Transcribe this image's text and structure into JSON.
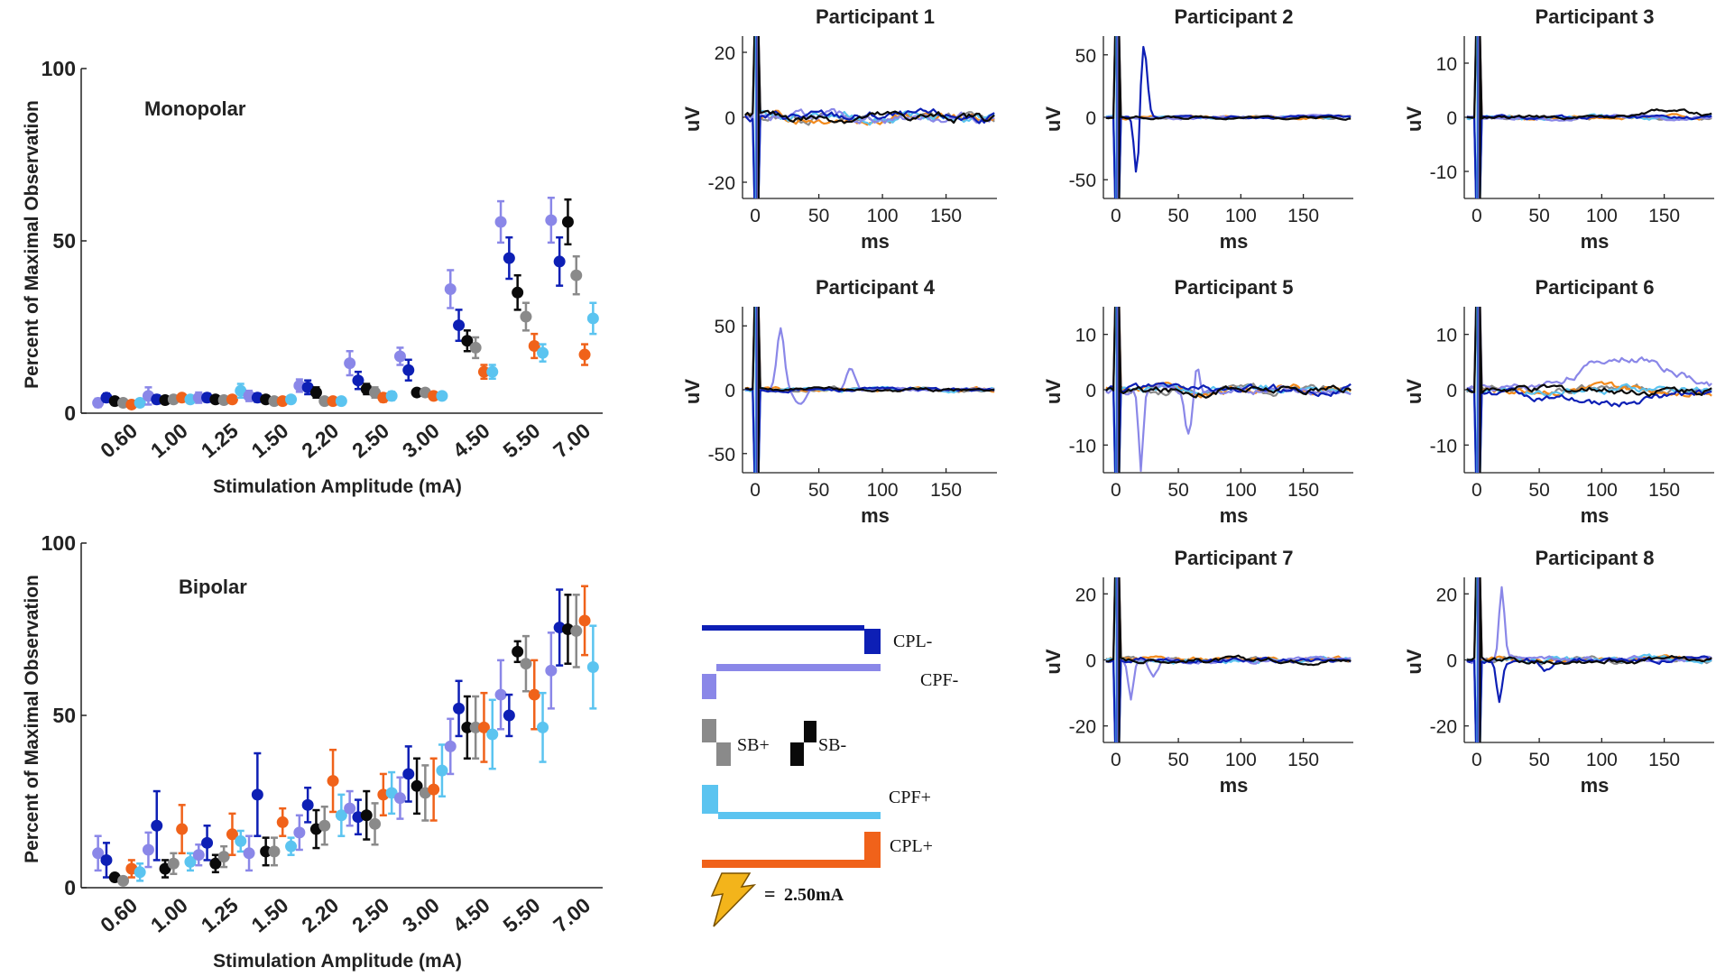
{
  "colors": {
    "CPL-": "#0d1fb5",
    "CPF-": "#8a87e8",
    "SB-": "#0a0a0a",
    "SB+": "#8a8a8a",
    "CPF+": "#5bc4f0",
    "CPL+": "#f0621a",
    "orange_trace": "#f28a1c",
    "bolt": "#f3b41b"
  },
  "chart_data": [
    {
      "id": "monopolar",
      "type": "scatter",
      "title": "Monopolar",
      "xlabel": "Stimulation Amplitude (mA)",
      "ylabel": "Percent of Maximal Observation",
      "ylim": [
        0,
        100
      ],
      "yticks": [
        "0",
        "50",
        "100"
      ],
      "categories": [
        "0.60",
        "1.00",
        "1.25",
        "1.50",
        "2.20",
        "2.50",
        "3.00",
        "4.50",
        "5.50",
        "7.00"
      ],
      "series": [
        {
          "name": "CPF-",
          "values": [
            3.0,
            5.0,
            4.5,
            5.0,
            8.0,
            14.5,
            16.5,
            36.0,
            55.5,
            56.0
          ],
          "err": [
            1.2,
            2.5,
            1.5,
            1.5,
            1.8,
            3.5,
            2.5,
            5.5,
            6.0,
            6.5
          ]
        },
        {
          "name": "CPL-",
          "values": [
            4.5,
            4.0,
            4.5,
            4.5,
            7.5,
            9.5,
            12.5,
            25.5,
            45.0,
            44.0
          ],
          "err": [
            1.2,
            1.2,
            1.2,
            1.2,
            2.0,
            2.5,
            3.0,
            4.5,
            6.0,
            7.0
          ]
        },
        {
          "name": "SB-",
          "values": [
            3.5,
            3.8,
            4.0,
            4.0,
            6.0,
            7.0,
            6.0,
            21.0,
            35.0,
            55.5
          ],
          "err": [
            1.0,
            1.0,
            1.0,
            1.0,
            1.5,
            1.5,
            1.0,
            3.0,
            5.0,
            6.5
          ]
        },
        {
          "name": "SB+",
          "values": [
            3.0,
            4.0,
            3.8,
            3.5,
            3.5,
            6.0,
            6.0,
            19.0,
            28.0,
            40.0
          ],
          "err": [
            1.0,
            1.0,
            1.0,
            1.0,
            1.0,
            1.5,
            1.0,
            3.0,
            4.0,
            5.5
          ]
        },
        {
          "name": "CPL+",
          "values": [
            2.5,
            4.5,
            4.0,
            3.5,
            3.5,
            4.5,
            5.0,
            12.0,
            19.5,
            17.0
          ],
          "err": [
            1.0,
            1.0,
            1.0,
            1.0,
            1.0,
            1.2,
            1.0,
            2.0,
            3.5,
            3.0
          ]
        },
        {
          "name": "CPF+",
          "values": [
            3.0,
            4.0,
            6.5,
            4.0,
            3.5,
            5.0,
            5.0,
            12.0,
            17.5,
            27.5
          ],
          "err": [
            1.0,
            1.0,
            2.0,
            1.0,
            1.0,
            1.2,
            1.0,
            2.0,
            2.5,
            4.5
          ]
        }
      ]
    },
    {
      "id": "bipolar",
      "type": "scatter",
      "title": "Bipolar",
      "xlabel": "Stimulation Amplitude (mA)",
      "ylabel": "Percent of Maximal Observation",
      "ylim": [
        0,
        100
      ],
      "yticks": [
        "0",
        "50",
        "100"
      ],
      "categories": [
        "0.60",
        "1.00",
        "1.25",
        "1.50",
        "2.20",
        "2.50",
        "3.00",
        "4.50",
        "5.50",
        "7.00"
      ],
      "series": [
        {
          "name": "CPF-",
          "values": [
            10.0,
            11.0,
            9.5,
            10.0,
            16.0,
            23.0,
            26.0,
            41.0,
            56.0,
            63.0
          ],
          "err": [
            5.0,
            5.0,
            3.0,
            5.0,
            5.0,
            5.0,
            6.0,
            8.0,
            10.0,
            11.0
          ]
        },
        {
          "name": "CPL-",
          "values": [
            8.0,
            18.0,
            13.0,
            27.0,
            24.0,
            20.5,
            33.0,
            52.0,
            50.0,
            75.5
          ],
          "err": [
            5.0,
            10.0,
            5.0,
            12.0,
            5.0,
            5.0,
            8.0,
            8.0,
            6.0,
            11.0
          ]
        },
        {
          "name": "SB-",
          "values": [
            3.0,
            5.5,
            7.0,
            10.5,
            17.0,
            21.0,
            29.5,
            46.5,
            68.5,
            75.0
          ],
          "err": [
            1.0,
            2.5,
            2.5,
            4.0,
            5.5,
            7.0,
            8.0,
            9.0,
            3.0,
            10.0
          ]
        },
        {
          "name": "SB+",
          "values": [
            2.0,
            7.0,
            9.0,
            10.5,
            18.0,
            18.5,
            27.5,
            46.5,
            65.0,
            74.5
          ],
          "err": [
            1.0,
            3.0,
            3.0,
            4.0,
            5.5,
            6.0,
            8.0,
            9.0,
            8.0,
            10.5
          ]
        },
        {
          "name": "CPL+",
          "values": [
            5.5,
            17.0,
            15.5,
            19.0,
            31.0,
            27.0,
            28.5,
            46.5,
            56.0,
            77.5
          ],
          "err": [
            2.5,
            7.0,
            6.0,
            4.0,
            9.0,
            6.0,
            9.0,
            10.0,
            10.0,
            10.0
          ]
        },
        {
          "name": "CPF+",
          "values": [
            4.5,
            7.5,
            13.5,
            12.0,
            21.0,
            27.5,
            34.0,
            44.5,
            46.5,
            64.0
          ],
          "err": [
            2.5,
            2.5,
            3.0,
            2.5,
            6.0,
            6.0,
            7.5,
            10.0,
            10.0,
            12.0
          ]
        }
      ]
    },
    {
      "id": "traces",
      "type": "line",
      "xlabel": "ms",
      "ylabel": "uV",
      "xlim": [
        -10,
        190
      ],
      "xticks": [
        "0",
        "50",
        "100",
        "150"
      ],
      "panels": [
        {
          "title": "Participant 1",
          "ylim": [
            -25,
            25
          ],
          "yticks": [
            "-20",
            "0",
            "20"
          ],
          "yvals": [
            -20,
            0,
            20
          ],
          "noise": 2.0,
          "features": []
        },
        {
          "title": "Participant 2",
          "ylim": [
            -65,
            65
          ],
          "yticks": [
            "-50",
            "0",
            "50"
          ],
          "yvals": [
            -50,
            0,
            50
          ],
          "noise": 1.5,
          "features": [
            {
              "series": "CPL-",
              "t": 22,
              "amp": 60,
              "w": 4
            },
            {
              "series": "CPL-",
              "t": 17,
              "amp": -55,
              "w": 3
            }
          ]
        },
        {
          "title": "Participant 3",
          "ylim": [
            -15,
            15
          ],
          "yticks": [
            "-10",
            "0",
            "10"
          ],
          "yvals": [
            -10,
            0,
            10
          ],
          "noise": 0.5,
          "features": [
            {
              "series": "SB-",
              "t": 150,
              "amp": 1.5,
              "w": 30
            }
          ]
        },
        {
          "title": "Participant 4",
          "ylim": [
            -65,
            65
          ],
          "yticks": [
            "-50",
            "0",
            "50"
          ],
          "yvals": [
            -50,
            0,
            50
          ],
          "noise": 2.0,
          "features": [
            {
              "series": "CPF-",
              "t": 20,
              "amp": 48,
              "w": 4
            },
            {
              "series": "CPF-",
              "t": 35,
              "amp": -12,
              "w": 6
            },
            {
              "series": "CPF-",
              "t": 75,
              "amp": 18,
              "w": 5
            }
          ]
        },
        {
          "title": "Participant 5",
          "ylim": [
            -15,
            15
          ],
          "yticks": [
            "-10",
            "0",
            "10"
          ],
          "yvals": [
            -10,
            0,
            10
          ],
          "noise": 1.0,
          "features": [
            {
              "series": "CPF-",
              "t": 20,
              "amp": -14,
              "w": 2.5
            },
            {
              "series": "CPF-",
              "t": 58,
              "amp": -8,
              "w": 4
            },
            {
              "series": "CPF-",
              "t": 65,
              "amp": 5,
              "w": 3
            }
          ]
        },
        {
          "title": "Participant 6",
          "ylim": [
            -15,
            15
          ],
          "yticks": [
            "-10",
            "0",
            "10"
          ],
          "yvals": [
            -10,
            0,
            10
          ],
          "noise": 1.0,
          "features": [
            {
              "series": "CPF-",
              "t": 120,
              "amp": 6,
              "w": 50
            },
            {
              "series": "CPL-",
              "t": 100,
              "amp": -2.5,
              "w": 60
            }
          ]
        },
        {
          "title": "Participant 7",
          "ylim": [
            -25,
            25
          ],
          "yticks": [
            "-20",
            "0",
            "20"
          ],
          "yvals": [
            -20,
            0,
            20
          ],
          "noise": 1.0,
          "features": [
            {
              "series": "CPF-",
              "t": 12,
              "amp": -12,
              "w": 3
            },
            {
              "series": "CPF-",
              "t": 30,
              "amp": -5,
              "w": 5
            }
          ]
        },
        {
          "title": "Participant 8",
          "ylim": [
            -25,
            25
          ],
          "yticks": [
            "-20",
            "0",
            "20"
          ],
          "yvals": [
            -20,
            0,
            20
          ],
          "noise": 1.2,
          "features": [
            {
              "series": "CPF-",
              "t": 20,
              "amp": 22,
              "w": 3
            },
            {
              "series": "CPL-",
              "t": 18,
              "amp": -12,
              "w": 3
            },
            {
              "series": "CPL-",
              "t": 55,
              "amp": -4,
              "w": 6
            }
          ]
        }
      ]
    }
  ],
  "legend": {
    "labels": [
      "CPL-",
      "CPF-",
      "SB+",
      "SB-",
      "CPF+",
      "CPL+"
    ],
    "equals": "=",
    "amplitude": "2.50mA"
  }
}
